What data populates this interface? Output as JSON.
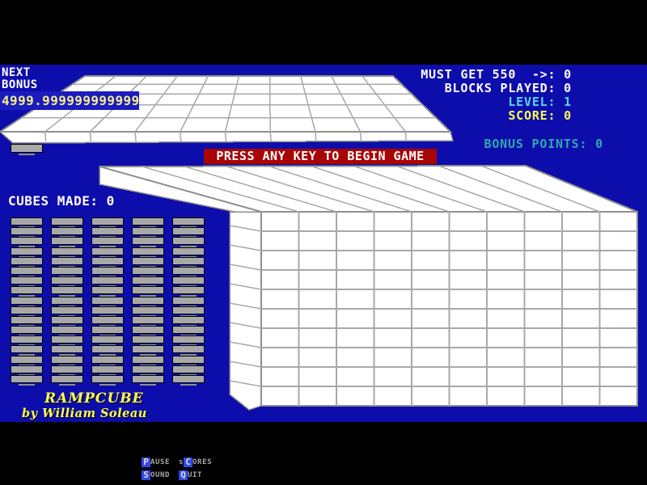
{
  "hud_left": {
    "next": "NEXT",
    "bonus": "BONUS",
    "bonus_value": "4999.999999999999"
  },
  "stats": [
    {
      "label": "MUST GET 550  ->:",
      "value": "0",
      "color": "#ffffff"
    },
    {
      "label": "BLOCKS PLAYED:",
      "value": "0",
      "color": "#ffffff"
    },
    {
      "label": "LEVEL:",
      "value": "1",
      "color": "#59d7e8"
    },
    {
      "label": "SCORE:",
      "value": "0",
      "color": "#ffff4f"
    }
  ],
  "bonus_points": {
    "label": "BONUS POINTS:",
    "value": "0",
    "color": "#2fa9ad"
  },
  "banner": {
    "text": "PRESS ANY KEY TO BEGIN GAME",
    "bg": "#a80505",
    "fg": "#ffffff"
  },
  "cubes_made": {
    "label": "CUBES MADE:",
    "value": "0"
  },
  "logo": {
    "title": "RAMPCUBE",
    "byline": "by William Soleau"
  },
  "menu": [
    {
      "name": "pause",
      "pre": "",
      "key": "P",
      "rest": "AUSE"
    },
    {
      "name": "scores",
      "pre": "s",
      "key": "C",
      "rest": "ORES"
    },
    {
      "name": "sound",
      "pre": "",
      "key": "S",
      "rest": "OUND"
    },
    {
      "name": "quit",
      "pre": "",
      "key": "Q",
      "rest": "UIT"
    }
  ],
  "structures": {
    "top_platform": {
      "columns": 10,
      "rows": 5
    },
    "main_ramp": {
      "front_columns": 10,
      "front_rows": 10,
      "top_columns": 10
    },
    "block_stacks": {
      "columns": 5,
      "blocks_per_column": 17
    },
    "next_block_count": 1
  },
  "colors": {
    "background": "#0d0dab",
    "surface": "#ffffff",
    "grid_line": "#a8a8a8",
    "outline": "#8f8f8f",
    "block_gray": "#a8a8a8",
    "hotkey_bg": "#3148e8",
    "menu_text": "#a8a8a8",
    "highlight_box": "#1b1bc0"
  }
}
